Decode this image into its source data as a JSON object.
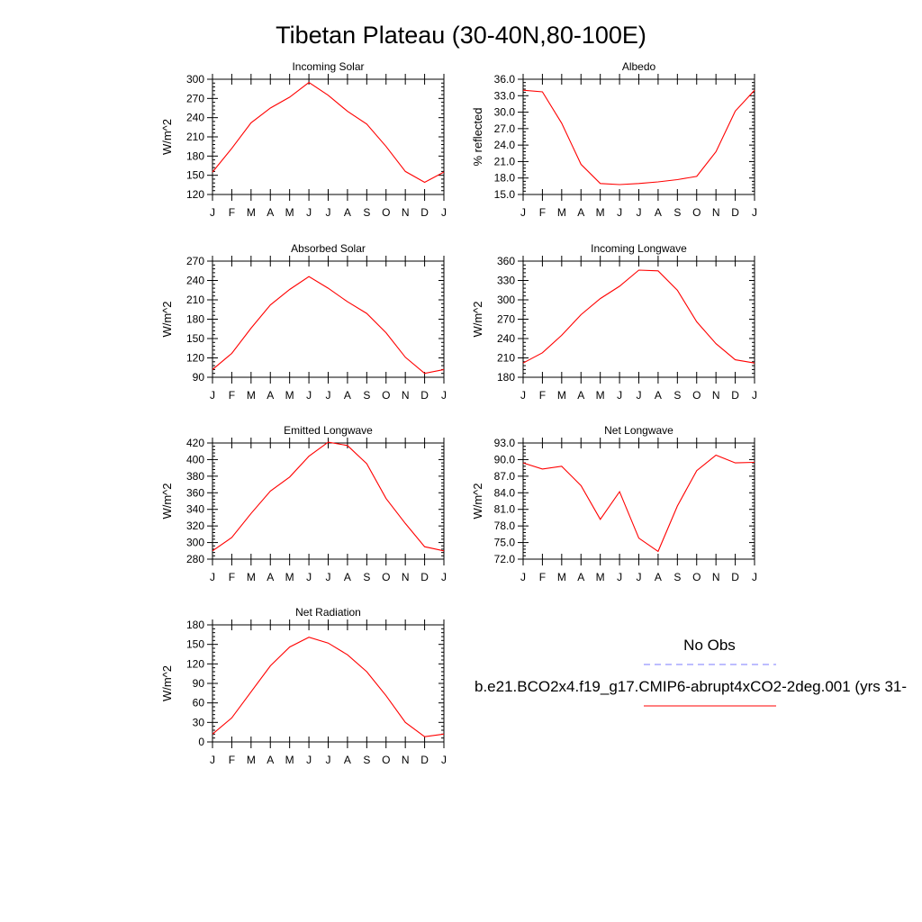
{
  "page": {
    "title": "Tibetan Plateau (30-40N,80-100E)"
  },
  "legend": {
    "obs_label": "No Obs",
    "obs_color": "#7b7bff",
    "model_label": "b.e21.BCO2x4.f19_g17.CMIP6-abrupt4xCO2-2deg.001 (yrs 31-",
    "model_color": "#ff0000"
  },
  "chart_data": [
    {
      "type": "line",
      "title": "Incoming Solar",
      "ylabel": "W/m^2",
      "ylim": [
        120,
        300
      ],
      "yticks": [
        "120",
        "150",
        "180",
        "210",
        "240",
        "270",
        "300"
      ],
      "categories": [
        "J",
        "F",
        "M",
        "A",
        "M",
        "J",
        "J",
        "A",
        "S",
        "O",
        "N",
        "D",
        "J"
      ],
      "series": [
        {
          "color": "#ff0000",
          "values": [
            155,
            192,
            232,
            255,
            272,
            295,
            275,
            250,
            230,
            195,
            156,
            139,
            155
          ]
        }
      ]
    },
    {
      "type": "line",
      "title": "Albedo",
      "ylabel": "% reflected",
      "ylim": [
        15.0,
        36.0
      ],
      "yticks": [
        "15.0",
        "18.0",
        "21.0",
        "24.0",
        "27.0",
        "30.0",
        "33.0",
        "36.0"
      ],
      "categories": [
        "J",
        "F",
        "M",
        "A",
        "M",
        "J",
        "J",
        "A",
        "S",
        "O",
        "N",
        "D",
        "J"
      ],
      "series": [
        {
          "color": "#ff0000",
          "values": [
            34.0,
            33.7,
            28.0,
            20.5,
            17.0,
            16.8,
            17.0,
            17.3,
            17.7,
            18.3,
            22.8,
            30.2,
            34.0
          ]
        }
      ]
    },
    {
      "type": "line",
      "title": "Absorbed Solar",
      "ylabel": "W/m^2",
      "ylim": [
        90,
        270
      ],
      "yticks": [
        "90",
        "120",
        "150",
        "180",
        "210",
        "240",
        "270"
      ],
      "categories": [
        "J",
        "F",
        "M",
        "A",
        "M",
        "J",
        "J",
        "A",
        "S",
        "O",
        "N",
        "D",
        "J"
      ],
      "series": [
        {
          "color": "#ff0000",
          "values": [
            102,
            127,
            166,
            202,
            226,
            246,
            228,
            207,
            189,
            159,
            121,
            96,
            102
          ]
        }
      ]
    },
    {
      "type": "line",
      "title": "Incoming Longwave",
      "ylabel": "W/m^2",
      "ylim": [
        180,
        360
      ],
      "yticks": [
        "180",
        "210",
        "240",
        "270",
        "300",
        "330",
        "360"
      ],
      "categories": [
        "J",
        "F",
        "M",
        "A",
        "M",
        "J",
        "J",
        "A",
        "S",
        "O",
        "N",
        "D",
        "J"
      ],
      "series": [
        {
          "color": "#ff0000",
          "values": [
            202,
            218,
            245,
            277,
            302,
            321,
            346,
            345,
            315,
            266,
            232,
            207,
            202
          ]
        }
      ]
    },
    {
      "type": "line",
      "title": "Emitted Longwave",
      "ylabel": "W/m^2",
      "ylim": [
        280,
        420
      ],
      "yticks": [
        "280",
        "300",
        "320",
        "340",
        "360",
        "380",
        "400",
        "420"
      ],
      "categories": [
        "J",
        "F",
        "M",
        "A",
        "M",
        "J",
        "J",
        "A",
        "S",
        "O",
        "N",
        "D",
        "J"
      ],
      "series": [
        {
          "color": "#ff0000",
          "values": [
            290,
            306,
            335,
            362,
            379,
            404,
            421,
            417,
            395,
            353,
            323,
            295,
            290
          ]
        }
      ]
    },
    {
      "type": "line",
      "title": "Net Longwave",
      "ylabel": "W/m^2",
      "ylim": [
        72.0,
        93.0
      ],
      "yticks": [
        "72.0",
        "75.0",
        "78.0",
        "81.0",
        "84.0",
        "87.0",
        "90.0",
        "93.0"
      ],
      "categories": [
        "J",
        "F",
        "M",
        "A",
        "M",
        "J",
        "J",
        "A",
        "S",
        "O",
        "N",
        "D",
        "J"
      ],
      "series": [
        {
          "color": "#ff0000",
          "values": [
            89.4,
            88.3,
            88.8,
            85.3,
            79.2,
            84.2,
            75.8,
            73.4,
            81.6,
            88.0,
            90.8,
            89.4,
            89.5
          ]
        }
      ]
    },
    {
      "type": "line",
      "title": "Net Radiation",
      "ylabel": "W/m^2",
      "ylim": [
        0,
        180
      ],
      "yticks": [
        "0",
        "30",
        "60",
        "90",
        "120",
        "150",
        "180"
      ],
      "categories": [
        "J",
        "F",
        "M",
        "A",
        "M",
        "J",
        "J",
        "A",
        "S",
        "O",
        "N",
        "D",
        "J"
      ],
      "series": [
        {
          "color": "#ff0000",
          "values": [
            12,
            37,
            77,
            117,
            146,
            161,
            152,
            134,
            108,
            71,
            30,
            8,
            12
          ]
        }
      ]
    }
  ]
}
